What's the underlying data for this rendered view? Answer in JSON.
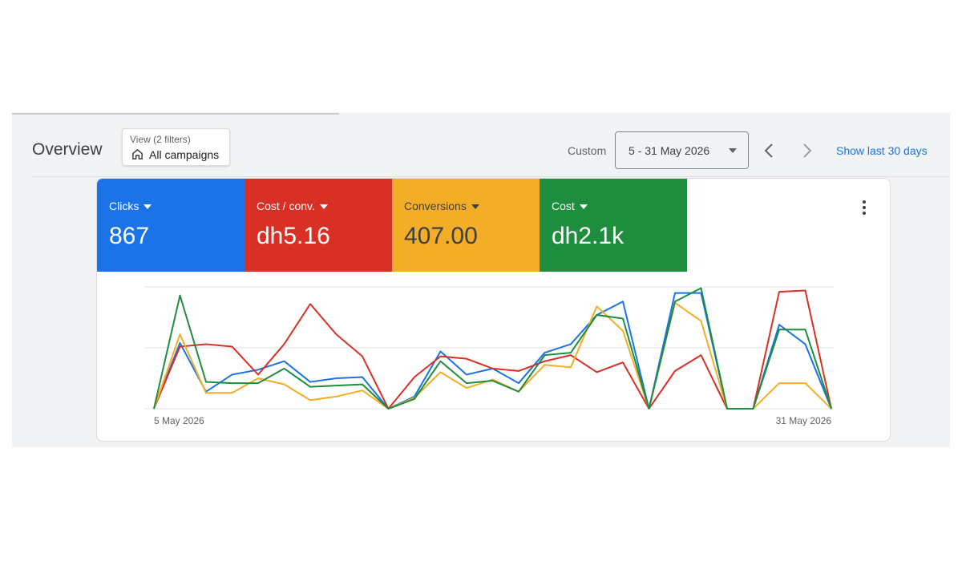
{
  "header": {
    "title": "Overview",
    "filter_caption": "View (2 filters)",
    "filter_value": "All campaigns",
    "date_caption": "Custom",
    "date_range": "5 - 31 May 2026",
    "show_last": "Show last 30 days"
  },
  "chart_data": {
    "type": "line",
    "categories": [
      "5 May 2026",
      null,
      null,
      null,
      null,
      null,
      null,
      null,
      null,
      null,
      null,
      null,
      null,
      null,
      null,
      null,
      null,
      null,
      null,
      null,
      null,
      null,
      null,
      null,
      null,
      null,
      "31 May 2026"
    ],
    "series": [
      {
        "name": "Clicks",
        "summary": "867",
        "color": "#1a73e8",
        "values": [
          0,
          54,
          14,
          28,
          32,
          39,
          22,
          25,
          26,
          0,
          10,
          47,
          28,
          33,
          21,
          46,
          53,
          77,
          88,
          0,
          95,
          95,
          0,
          0,
          69,
          53,
          0
        ]
      },
      {
        "name": "Cost / conv.",
        "summary": "dh5.16",
        "color": "#d93025",
        "values": [
          0,
          51,
          53,
          51,
          28,
          53,
          86,
          61,
          43,
          0,
          26,
          43,
          41,
          33,
          31,
          39,
          44,
          30,
          38,
          0,
          31,
          44,
          0,
          0,
          96,
          97,
          0
        ]
      },
      {
        "name": "Conversions",
        "summary": "407.00",
        "color": "#f4ad26",
        "values": [
          0,
          61,
          13,
          13,
          25,
          20,
          7,
          10,
          15,
          0,
          9,
          30,
          17,
          24,
          14,
          36,
          34,
          84,
          64,
          0,
          87,
          72,
          0,
          0,
          21,
          21,
          0
        ]
      },
      {
        "name": "Cost",
        "summary": "dh2.1k",
        "color": "#1e8e3e",
        "values": [
          0,
          93,
          22,
          21,
          21,
          33,
          18,
          19,
          20,
          0,
          8,
          39,
          21,
          23,
          14,
          44,
          46,
          77,
          74,
          0,
          88,
          99,
          0,
          0,
          65,
          65,
          0
        ]
      }
    ],
    "ylim": [
      0,
      100
    ],
    "yticks": [
      0,
      50,
      100
    ],
    "grid": true
  }
}
